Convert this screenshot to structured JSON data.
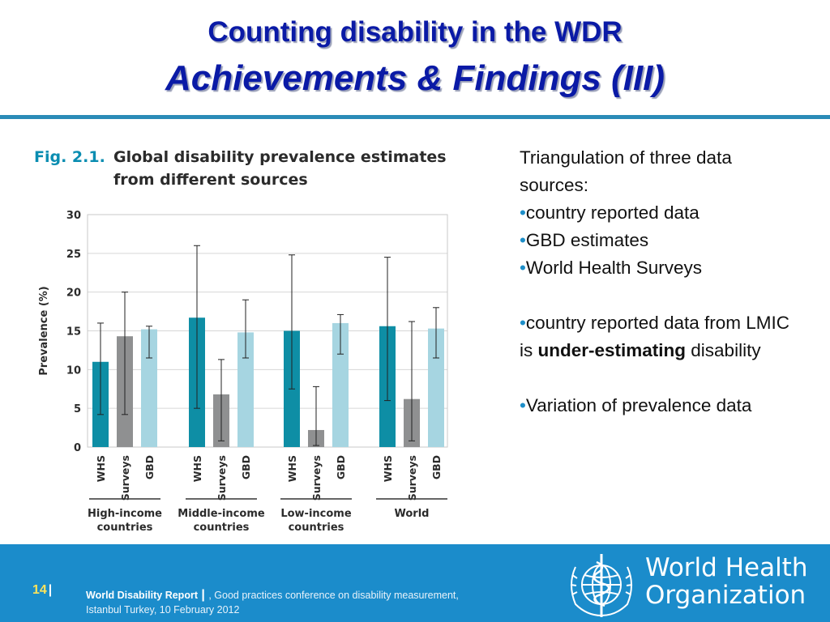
{
  "title": {
    "line1": "Counting disability in the WDR",
    "line2": "Achievements & Findings (III)"
  },
  "figure": {
    "number": "Fig. 2.1.",
    "caption": "Global disability prevalence estimates from different sources"
  },
  "chart_data": {
    "type": "bar",
    "ylabel": "Prevalence (%)",
    "ylim": [
      0,
      30
    ],
    "yticks": [
      0,
      5,
      10,
      15,
      20,
      25,
      30
    ],
    "grid": true,
    "groups": [
      {
        "label": "High-income countries",
        "bars": [
          {
            "source": "WHS",
            "value": 11.0,
            "low": 4.2,
            "high": 16.0
          },
          {
            "source": "Surveys",
            "value": 14.3,
            "low": 4.2,
            "high": 20.0
          },
          {
            "source": "GBD",
            "value": 15.2,
            "low": 11.5,
            "high": 15.6
          }
        ]
      },
      {
        "label": "Middle-income countries",
        "bars": [
          {
            "source": "WHS",
            "value": 16.7,
            "low": 5.0,
            "high": 26.0
          },
          {
            "source": "Surveys",
            "value": 6.8,
            "low": 0.8,
            "high": 11.3
          },
          {
            "source": "GBD",
            "value": 14.8,
            "low": 11.5,
            "high": 19.0
          }
        ]
      },
      {
        "label": "Low-income countries",
        "bars": [
          {
            "source": "WHS",
            "value": 15.0,
            "low": 7.5,
            "high": 24.8
          },
          {
            "source": "Surveys",
            "value": 2.2,
            "low": 0.2,
            "high": 7.8
          },
          {
            "source": "GBD",
            "value": 16.0,
            "low": 12.0,
            "high": 17.1
          }
        ]
      },
      {
        "label": "World",
        "bars": [
          {
            "source": "WHS",
            "value": 15.6,
            "low": 6.0,
            "high": 24.5
          },
          {
            "source": "Surveys",
            "value": 6.2,
            "low": 0.8,
            "high": 16.2
          },
          {
            "source": "GBD",
            "value": 15.3,
            "low": 11.5,
            "high": 18.0
          }
        ]
      }
    ],
    "colors": {
      "WHS": "#0e8ea5",
      "Surveys": "#8f9091",
      "GBD": "#a6d5e1"
    }
  },
  "side": {
    "intro": "Triangulation of three data sources:",
    "sources": [
      "country reported data",
      "GBD estimates",
      "World Health Surveys"
    ],
    "finding_pre": "country reported data from LMIC is ",
    "finding_bold": "under-estimating",
    "finding_post": " disability",
    "variation": "Variation of prevalence data",
    "bullet_char": "•"
  },
  "footer": {
    "page": "14",
    "separator": "|",
    "report": "World  Disability Report",
    "report_sep": " | ",
    "details": ", Good practices conference on disability measurement, Istanbul Turkey, 10 February 2012"
  },
  "logo": {
    "line1": "World Health",
    "line2": "Organization"
  }
}
